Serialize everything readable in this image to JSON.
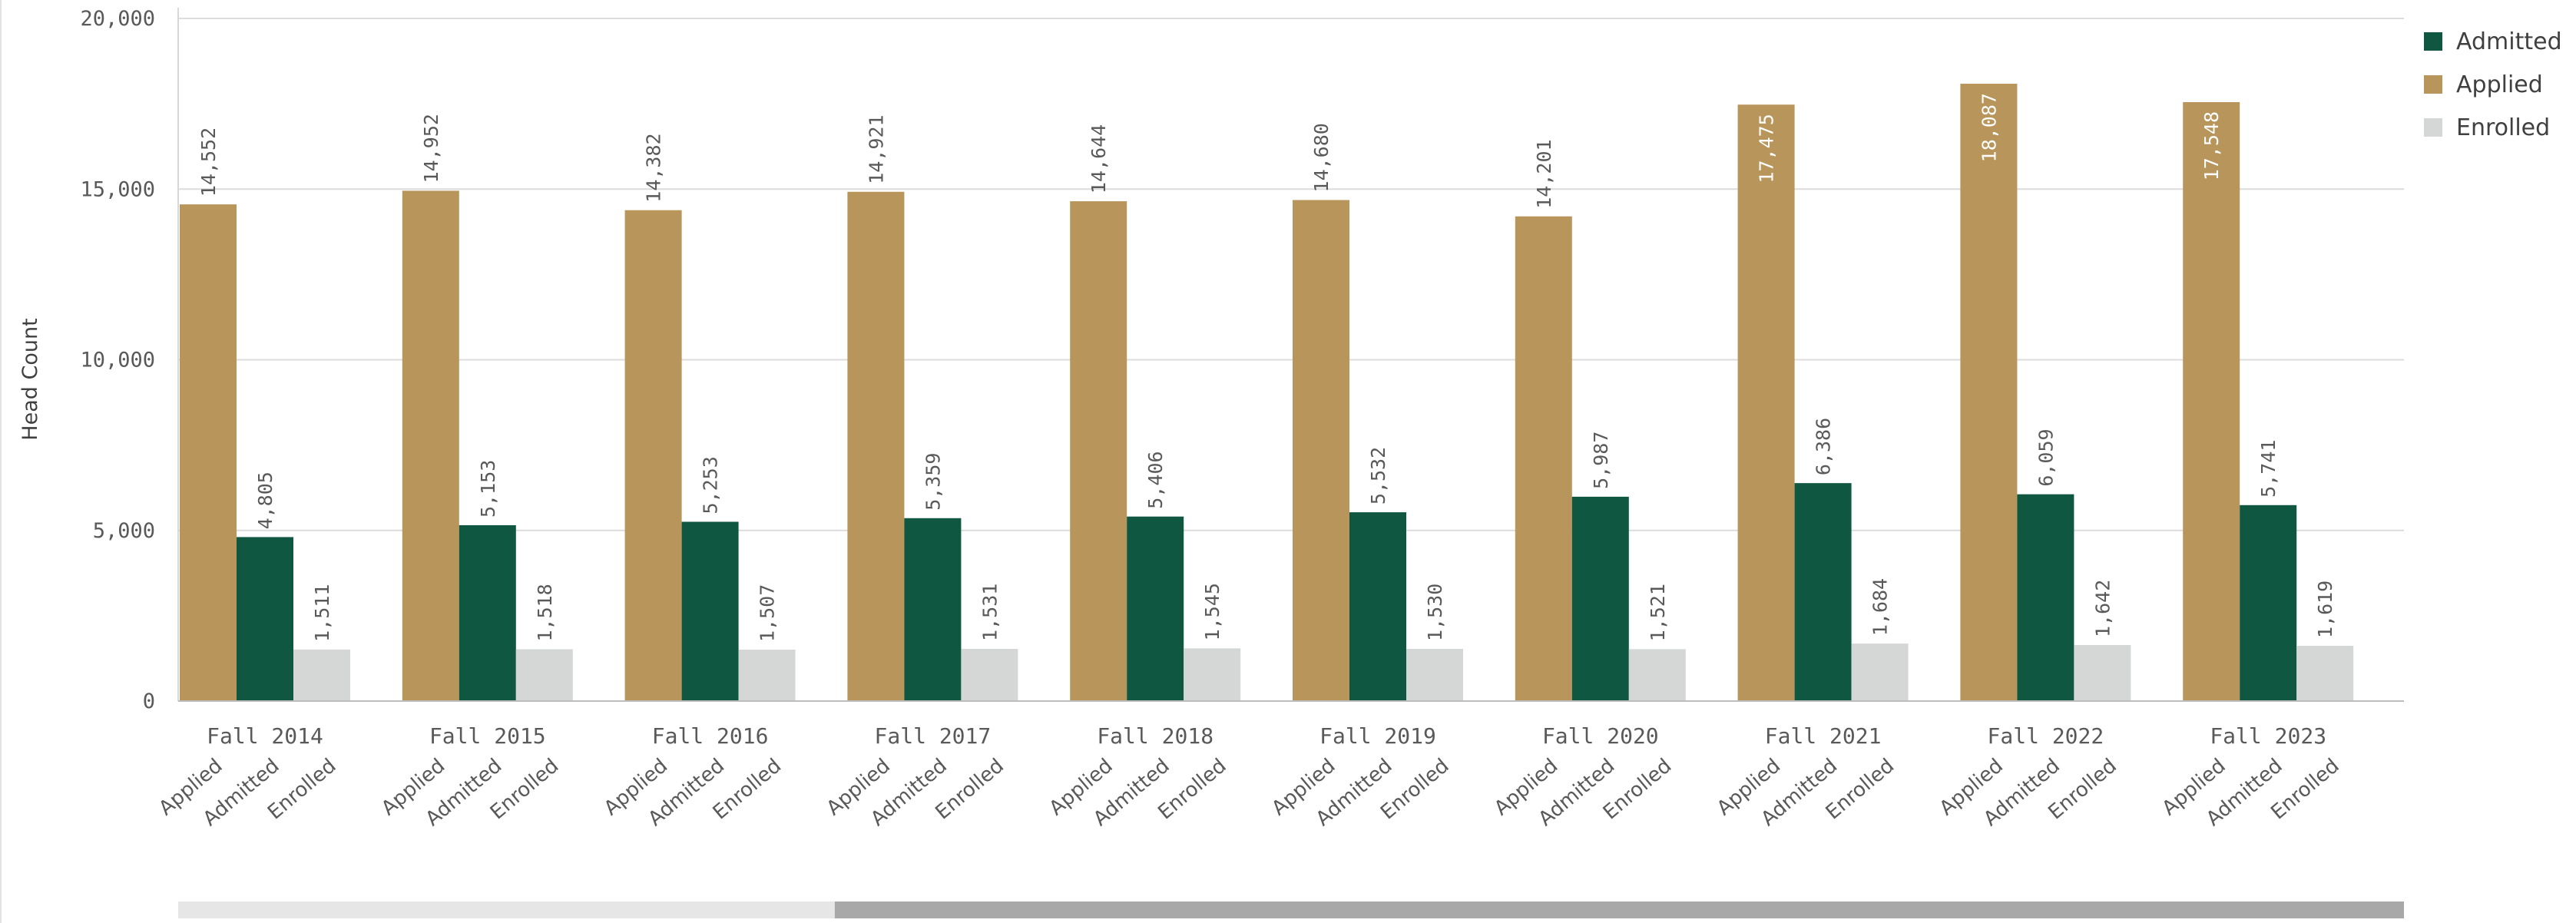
{
  "chart_data": {
    "type": "bar",
    "ylabel": "Head Count",
    "ylim": [
      0,
      20000
    ],
    "yticks": [
      0,
      5000,
      10000,
      15000,
      20000
    ],
    "ytick_labels": [
      "0",
      "5,000",
      "10,000",
      "15,000",
      "20,000"
    ],
    "categories": [
      "Fall 2014",
      "Fall 2015",
      "Fall 2016",
      "Fall 2017",
      "Fall 2018",
      "Fall 2019",
      "Fall 2020",
      "Fall 2021",
      "Fall 2022",
      "Fall 2023"
    ],
    "sub_categories": [
      "Applied",
      "Admitted",
      "Enrolled"
    ],
    "series": [
      {
        "name": "Applied",
        "color": "#b8955a",
        "values": [
          14552,
          14952,
          14382,
          14921,
          14644,
          14680,
          14201,
          17475,
          18087,
          17548
        ],
        "labels": [
          "14,552",
          "14,952",
          "14,382",
          "14,921",
          "14,644",
          "14,680",
          "14,201",
          "17,475",
          "18,087",
          "17,548"
        ]
      },
      {
        "name": "Admitted",
        "color": "#0f5741",
        "values": [
          4805,
          5153,
          5253,
          5359,
          5406,
          5532,
          5987,
          6386,
          6059,
          5741
        ],
        "labels": [
          "4,805",
          "5,153",
          "5,253",
          "5,359",
          "5,406",
          "5,532",
          "5,987",
          "6,386",
          "6,059",
          "5,741"
        ]
      },
      {
        "name": "Enrolled",
        "color": "#d4d7d6",
        "values": [
          1511,
          1518,
          1507,
          1531,
          1545,
          1530,
          1521,
          1684,
          1642,
          1619
        ],
        "labels": [
          "1,511",
          "1,518",
          "1,507",
          "1,531",
          "1,545",
          "1,530",
          "1,521",
          "1,684",
          "1,642",
          "1,619"
        ]
      }
    ],
    "legend": {
      "placement": "top-right",
      "items": [
        {
          "name": "Admitted",
          "color": "#0f5741"
        },
        {
          "name": "Applied",
          "color": "#b8955a"
        },
        {
          "name": "Enrolled",
          "color": "#d4d7d6"
        }
      ]
    },
    "grid": true,
    "scrollbar": {
      "visible_start_fraction": 0.295,
      "visible_end_fraction": 1.0
    }
  }
}
